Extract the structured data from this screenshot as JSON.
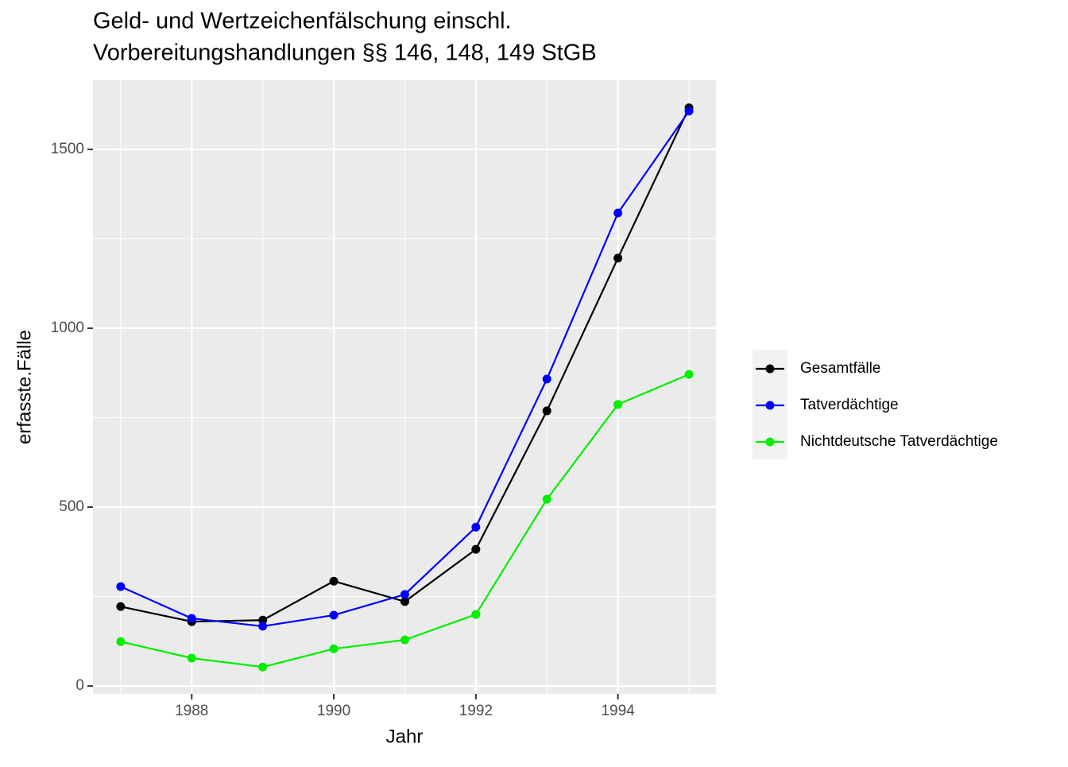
{
  "chart_data": {
    "type": "line",
    "title": "Geld- und Wertzeichenfälschung einschl.",
    "subtitle": "Vorbereitungshandlungen §§ 146, 148, 149 StGB",
    "xlabel": "Jahr",
    "ylabel": "erfasste.Fälle",
    "x": [
      1987,
      1988,
      1989,
      1990,
      1991,
      1992,
      1993,
      1994,
      1995
    ],
    "series": [
      {
        "name": "Gesamtfälle",
        "color": "#000000",
        "values": [
          222,
          180,
          184,
          293,
          236,
          382,
          769,
          1196,
          1616
        ]
      },
      {
        "name": "Tatverdächtige",
        "color": "#0000ff",
        "values": [
          278,
          189,
          167,
          198,
          256,
          444,
          858,
          1322,
          1607
        ]
      },
      {
        "name": "Nichtdeutsche Tatverdächtige",
        "color": "#00ee00",
        "values": [
          124,
          78,
          53,
          104,
          129,
          200,
          522,
          787,
          871
        ]
      }
    ],
    "xlim": [
      1986.61,
      1995.38
    ],
    "xticks": [
      1988,
      1990,
      1992,
      1994
    ],
    "xminor": [
      1987,
      1989,
      1991,
      1993,
      1995
    ],
    "ylim": [
      -22,
      1693
    ],
    "yticks": [
      0,
      500,
      1000,
      1500
    ],
    "yminor": [
      250,
      750,
      1250
    ],
    "grid": true,
    "legend": "right"
  }
}
